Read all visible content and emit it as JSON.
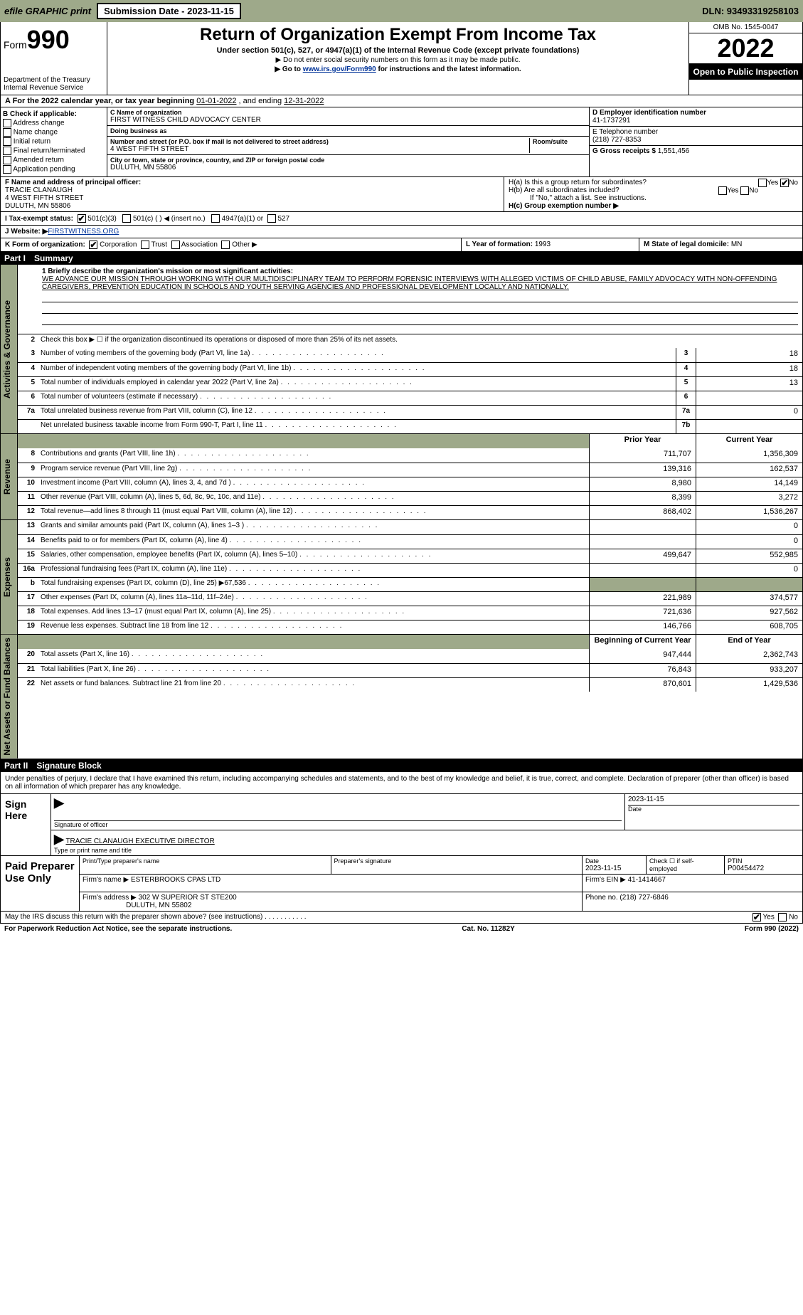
{
  "topbar": {
    "efile": "efile GRAPHIC print",
    "submission_btn": "Submission Date - 2023-11-15",
    "dln": "DLN: 93493319258103"
  },
  "header": {
    "form_label": "Form",
    "form_number": "990",
    "dept": "Department of the Treasury",
    "irs": "Internal Revenue Service",
    "title": "Return of Organization Exempt From Income Tax",
    "subtitle": "Under section 501(c), 527, or 4947(a)(1) of the Internal Revenue Code (except private foundations)",
    "note1": "▶ Do not enter social security numbers on this form as it may be made public.",
    "note2_pre": "▶ Go to ",
    "note2_link": "www.irs.gov/Form990",
    "note2_post": " for instructions and the latest information.",
    "omb": "OMB No. 1545-0047",
    "year": "2022",
    "open": "Open to Public Inspection"
  },
  "rowA": {
    "text_pre": "A For the 2022 calendar year, or tax year beginning ",
    "begin": "01-01-2022",
    "mid": " , and ending ",
    "end": "12-31-2022"
  },
  "colB": {
    "hdr": "B Check if applicable:",
    "items": [
      "Address change",
      "Name change",
      "Initial return",
      "Final return/terminated",
      "Amended return",
      "Application pending"
    ]
  },
  "colC": {
    "name_lbl": "C Name of organization",
    "name": "FIRST WITNESS CHILD ADVOCACY CENTER",
    "dba_lbl": "Doing business as",
    "dba": "",
    "street_lbl": "Number and street (or P.O. box if mail is not delivered to street address)",
    "room_lbl": "Room/suite",
    "street": "4 WEST FIFTH STREET",
    "city_lbl": "City or town, state or province, country, and ZIP or foreign postal code",
    "city": "DULUTH, MN  55806"
  },
  "colD": {
    "ein_lbl": "D Employer identification number",
    "ein": "41-1737291",
    "phone_lbl": "E Telephone number",
    "phone": "(218) 727-8353",
    "gross_lbl": "G Gross receipts $",
    "gross": "1,551,456"
  },
  "rowF": {
    "lbl": "F  Name and address of principal officer:",
    "name": "TRACIE CLANAUGH",
    "addr1": "4 WEST FIFTH STREET",
    "addr2": "DULUTH, MN  55806"
  },
  "rowH": {
    "a": "H(a)  Is this a group return for subordinates?",
    "b": "H(b)  Are all subordinates included?",
    "bnote": "If \"No,\" attach a list. See instructions.",
    "c": "H(c)  Group exemption number ▶",
    "yes": "Yes",
    "no": "No"
  },
  "rowI": {
    "lbl": "I   Tax-exempt status:",
    "o1": "501(c)(3)",
    "o2": "501(c) (  ) ◀ (insert no.)",
    "o3": "4947(a)(1) or",
    "o4": "527"
  },
  "rowJ": {
    "lbl": "J   Website: ▶",
    "val": " FIRSTWITNESS.ORG"
  },
  "rowK": {
    "lbl": "K Form of organization:",
    "opts": [
      "Corporation",
      "Trust",
      "Association",
      "Other ▶"
    ]
  },
  "rowL": {
    "lbl": "L Year of formation:",
    "val": "1993"
  },
  "rowM": {
    "lbl": "M State of legal domicile:",
    "val": "MN"
  },
  "part1": {
    "num": "Part I",
    "title": "Summary"
  },
  "mission": {
    "line1_lbl": "1  Briefly describe the organization's mission or most significant activities:",
    "text": "WE ADVANCE OUR MISSION THROUGH WORKING WITH OUR MULTIDISCIPLINARY TEAM TO PERFORM FORENSIC INTERVIEWS WITH ALLEGED VICTIMS OF CHILD ABUSE, FAMILY ADVOCACY WITH NON-OFFENDING CAREGIVERS, PREVENTION EDUCATION IN SCHOOLS AND YOUTH SERVING AGENCIES AND PROFESSIONAL DEVELOPMENT LOCALLY AND NATIONALLY."
  },
  "gov": {
    "sidelabel": "Activities & Governance",
    "r2": "Check this box ▶ ☐  if the organization discontinued its operations or disposed of more than 25% of its net assets.",
    "rows": [
      {
        "n": "3",
        "t": "Number of voting members of the governing body (Part VI, line 1a)",
        "cn": "3",
        "v": "18"
      },
      {
        "n": "4",
        "t": "Number of independent voting members of the governing body (Part VI, line 1b)",
        "cn": "4",
        "v": "18"
      },
      {
        "n": "5",
        "t": "Total number of individuals employed in calendar year 2022 (Part V, line 2a)",
        "cn": "5",
        "v": "13"
      },
      {
        "n": "6",
        "t": "Total number of volunteers (estimate if necessary)",
        "cn": "6",
        "v": ""
      },
      {
        "n": "7a",
        "t": "Total unrelated business revenue from Part VIII, column (C), line 12",
        "cn": "7a",
        "v": "0"
      },
      {
        "n": "",
        "t": "Net unrelated business taxable income from Form 990-T, Part I, line 11",
        "cn": "7b",
        "v": ""
      }
    ]
  },
  "colheaders": {
    "prior": "Prior Year",
    "current": "Current Year"
  },
  "rev": {
    "sidelabel": "Revenue",
    "rows": [
      {
        "n": "8",
        "t": "Contributions and grants (Part VIII, line 1h)",
        "p": "711,707",
        "c": "1,356,309"
      },
      {
        "n": "9",
        "t": "Program service revenue (Part VIII, line 2g)",
        "p": "139,316",
        "c": "162,537"
      },
      {
        "n": "10",
        "t": "Investment income (Part VIII, column (A), lines 3, 4, and 7d )",
        "p": "8,980",
        "c": "14,149"
      },
      {
        "n": "11",
        "t": "Other revenue (Part VIII, column (A), lines 5, 6d, 8c, 9c, 10c, and 11e)",
        "p": "8,399",
        "c": "3,272"
      },
      {
        "n": "12",
        "t": "Total revenue—add lines 8 through 11 (must equal Part VIII, column (A), line 12)",
        "p": "868,402",
        "c": "1,536,267"
      }
    ]
  },
  "exp": {
    "sidelabel": "Expenses",
    "rows": [
      {
        "n": "13",
        "t": "Grants and similar amounts paid (Part IX, column (A), lines 1–3 )",
        "p": "",
        "c": "0"
      },
      {
        "n": "14",
        "t": "Benefits paid to or for members (Part IX, column (A), line 4)",
        "p": "",
        "c": "0"
      },
      {
        "n": "15",
        "t": "Salaries, other compensation, employee benefits (Part IX, column (A), lines 5–10)",
        "p": "499,647",
        "c": "552,985"
      },
      {
        "n": "16a",
        "t": "Professional fundraising fees (Part IX, column (A), line 11e)",
        "p": "",
        "c": "0"
      },
      {
        "n": "b",
        "t": "Total fundraising expenses (Part IX, column (D), line 25) ▶67,536",
        "p": "GREY",
        "c": "GREY"
      },
      {
        "n": "17",
        "t": "Other expenses (Part IX, column (A), lines 11a–11d, 11f–24e)",
        "p": "221,989",
        "c": "374,577"
      },
      {
        "n": "18",
        "t": "Total expenses. Add lines 13–17 (must equal Part IX, column (A), line 25)",
        "p": "721,636",
        "c": "927,562"
      },
      {
        "n": "19",
        "t": "Revenue less expenses. Subtract line 18 from line 12",
        "p": "146,766",
        "c": "608,705"
      }
    ]
  },
  "net": {
    "sidelabel": "Net Assets or Fund Balances",
    "hdr_begin": "Beginning of Current Year",
    "hdr_end": "End of Year",
    "rows": [
      {
        "n": "20",
        "t": "Total assets (Part X, line 16)",
        "p": "947,444",
        "c": "2,362,743"
      },
      {
        "n": "21",
        "t": "Total liabilities (Part X, line 26)",
        "p": "76,843",
        "c": "933,207"
      },
      {
        "n": "22",
        "t": "Net assets or fund balances. Subtract line 21 from line 20",
        "p": "870,601",
        "c": "1,429,536"
      }
    ]
  },
  "part2": {
    "num": "Part II",
    "title": "Signature Block"
  },
  "sig": {
    "intro": "Under penalties of perjury, I declare that I have examined this return, including accompanying schedules and statements, and to the best of my knowledge and belief, it is true, correct, and complete. Declaration of preparer (other than officer) is based on all information of which preparer has any knowledge.",
    "sign_here": "Sign Here",
    "sig_officer_lbl": "Signature of officer",
    "date_lbl": "Date",
    "date": "2023-11-15",
    "name": "TRACIE CLANAUGH  EXECUTIVE DIRECTOR",
    "name_lbl": "Type or print name and title"
  },
  "paid": {
    "lbl": "Paid Preparer Use Only",
    "h1": "Print/Type preparer's name",
    "h2": "Preparer's signature",
    "h3": "Date",
    "h3v": "2023-11-15",
    "h4": "Check ☐ if self-employed",
    "h5": "PTIN",
    "h5v": "P00454472",
    "firm_lbl": "Firm's name    ▶",
    "firm": "ESTERBROOKS CPAS LTD",
    "ein_lbl": "Firm's EIN ▶",
    "ein": "41-1414667",
    "addr_lbl": "Firm's address ▶",
    "addr1": "302 W SUPERIOR ST STE200",
    "addr2": "DULUTH, MN  55802",
    "phone_lbl": "Phone no.",
    "phone": "(218) 727-6846"
  },
  "footer": {
    "q": "May the IRS discuss this return with the preparer shown above? (see instructions)",
    "yes": "Yes",
    "no": "No",
    "paperwork": "For Paperwork Reduction Act Notice, see the separate instructions.",
    "cat": "Cat. No. 11282Y",
    "form": "Form 990 (2022)"
  }
}
